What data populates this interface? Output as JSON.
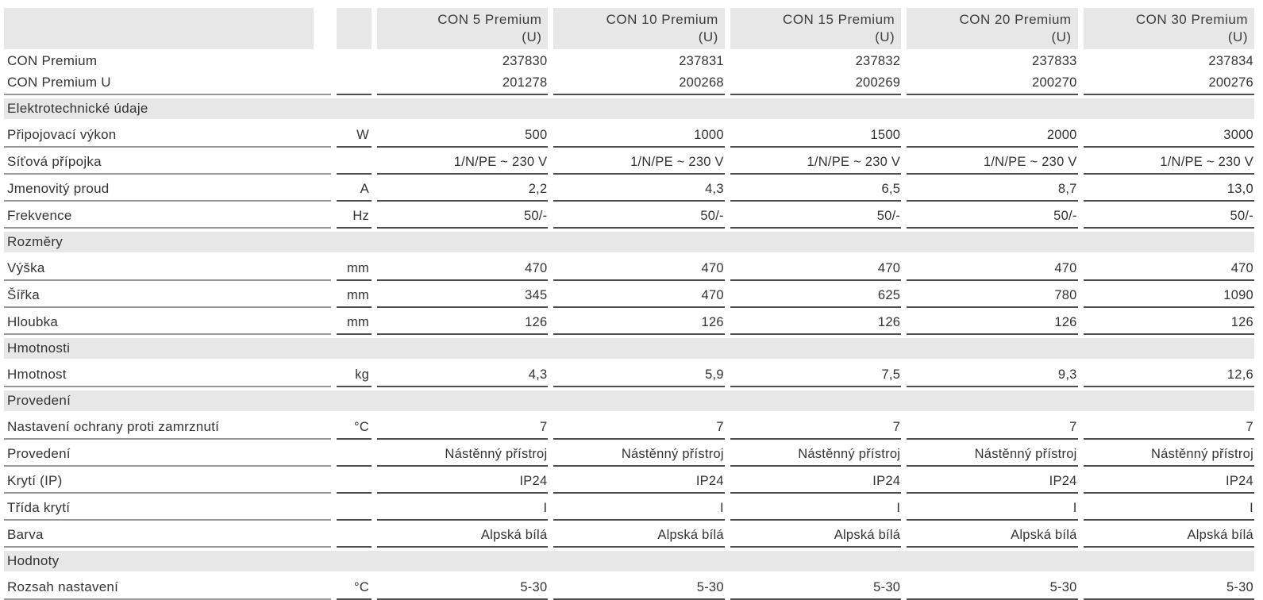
{
  "table": {
    "colors": {
      "band_gray": "#e7e7e7",
      "text": "#333333",
      "rule_dark": "#4d4d4d",
      "rule_light": "#989898"
    },
    "columns": [
      {
        "name": "CON 5 Premium",
        "variant": "(U)"
      },
      {
        "name": "CON 10 Premium",
        "variant": "(U)"
      },
      {
        "name": "CON 15 Premium",
        "variant": "(U)"
      },
      {
        "name": "CON 20 Premium",
        "variant": "(U)"
      },
      {
        "name": "CON 30 Premium",
        "variant": "(U)"
      }
    ],
    "rows": [
      {
        "type": "data",
        "compact": true,
        "rule": false,
        "label": "CON Premium",
        "unit": "",
        "values": [
          "237830",
          "237831",
          "237832",
          "237833",
          "237834"
        ]
      },
      {
        "type": "data",
        "compact": true,
        "rule": true,
        "label": "CON Premium U",
        "unit": "",
        "values": [
          "201278",
          "200268",
          "200269",
          "200270",
          "200276"
        ]
      },
      {
        "type": "section",
        "label": "Elektrotechnické údaje"
      },
      {
        "type": "data",
        "rule": true,
        "label": "Připojovací výkon",
        "unit": "W",
        "values": [
          "500",
          "1000",
          "1500",
          "2000",
          "3000"
        ]
      },
      {
        "type": "data",
        "rule": true,
        "label": "Síťová přípojka",
        "unit": "",
        "values": [
          "1/N/PE ~ 230 V",
          "1/N/PE ~ 230 V",
          "1/N/PE ~ 230 V",
          "1/N/PE ~ 230 V",
          "1/N/PE ~ 230 V"
        ]
      },
      {
        "type": "data",
        "rule": true,
        "label": "Jmenovitý proud",
        "unit": "A",
        "values": [
          "2,2",
          "4,3",
          "6,5",
          "8,7",
          "13,0"
        ]
      },
      {
        "type": "data",
        "rule": true,
        "label": "Frekvence",
        "unit": "Hz",
        "values": [
          "50/-",
          "50/-",
          "50/-",
          "50/-",
          "50/-"
        ]
      },
      {
        "type": "section",
        "label": "Rozměry"
      },
      {
        "type": "data",
        "rule": true,
        "label": "Výška",
        "unit": "mm",
        "values": [
          "470",
          "470",
          "470",
          "470",
          "470"
        ]
      },
      {
        "type": "data",
        "rule": true,
        "label": "Šířka",
        "unit": "mm",
        "values": [
          "345",
          "470",
          "625",
          "780",
          "1090"
        ]
      },
      {
        "type": "data",
        "rule": true,
        "label": "Hloubka",
        "unit": "mm",
        "values": [
          "126",
          "126",
          "126",
          "126",
          "126"
        ]
      },
      {
        "type": "section",
        "label": "Hmotnosti"
      },
      {
        "type": "data",
        "rule": true,
        "label": "Hmotnost",
        "unit": "kg",
        "values": [
          "4,3",
          "5,9",
          "7,5",
          "9,3",
          "12,6"
        ]
      },
      {
        "type": "section",
        "label": "Provedení"
      },
      {
        "type": "data",
        "rule": true,
        "label": "Nastavení ochrany proti zamrznutí",
        "unit": "°C",
        "values": [
          "7",
          "7",
          "7",
          "7",
          "7"
        ]
      },
      {
        "type": "data",
        "rule": true,
        "label": "Provedení",
        "unit": "",
        "values": [
          "Nástěnný přístroj",
          "Nástěnný přístroj",
          "Nástěnný přístroj",
          "Nástěnný přístroj",
          "Nástěnný přístroj"
        ]
      },
      {
        "type": "data",
        "rule": true,
        "label": "Krytí (IP)",
        "unit": "",
        "values": [
          "IP24",
          "IP24",
          "IP24",
          "IP24",
          "IP24"
        ]
      },
      {
        "type": "data",
        "rule": true,
        "label": "Třída krytí",
        "unit": "",
        "values": [
          "I",
          "I",
          "I",
          "I",
          "I"
        ]
      },
      {
        "type": "data",
        "rule": true,
        "label": "Barva",
        "unit": "",
        "values": [
          "Alpská bílá",
          "Alpská bílá",
          "Alpská bílá",
          "Alpská bílá",
          "Alpská bílá"
        ]
      },
      {
        "type": "section",
        "label": "Hodnoty"
      },
      {
        "type": "data",
        "rule": true,
        "label": "Rozsah nastavení",
        "unit": "°C",
        "values": [
          "5-30",
          "5-30",
          "5-30",
          "5-30",
          "5-30"
        ]
      }
    ]
  }
}
